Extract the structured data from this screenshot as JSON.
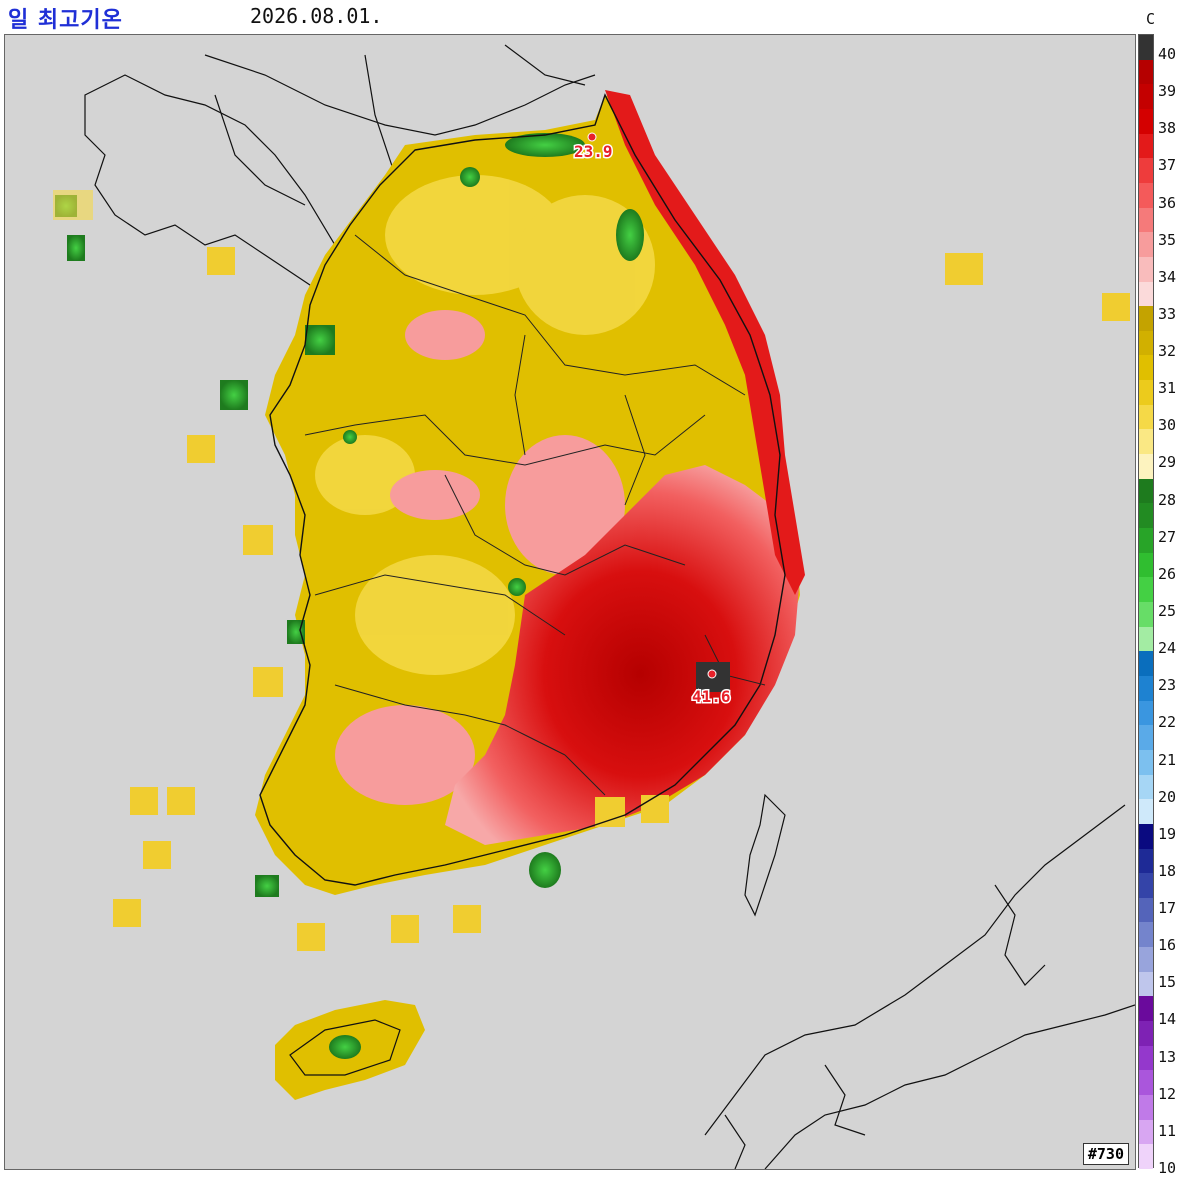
{
  "header": {
    "title": "일 최고기온",
    "date": "2026.08.01."
  },
  "legend": {
    "unit": "C",
    "labels": [
      "40",
      "39",
      "38",
      "37",
      "36",
      "35",
      "34",
      "33",
      "32",
      "31",
      "30",
      "29",
      "28",
      "27",
      "26",
      "25",
      "24",
      "23",
      "22",
      "21",
      "20",
      "19",
      "18",
      "17",
      "16",
      "15",
      "14",
      "13",
      "12",
      "11",
      "10"
    ],
    "colors": [
      "#333333",
      "#b50000",
      "#c40000",
      "#d40000",
      "#e31a1a",
      "#ee3c3c",
      "#f45a5a",
      "#f57a7a",
      "#f79c9c",
      "#f9bcbc",
      "#fbdada",
      "#c4a300",
      "#d1b000",
      "#e0bf00",
      "#eccb1c",
      "#f5d947",
      "#fae884",
      "#fdf3bf",
      "#1e7b1e",
      "#228b22",
      "#28a428",
      "#30be30",
      "#44d044",
      "#67dd67",
      "#a3eca3",
      "#0a6ebd",
      "#1e82d1",
      "#3a96e0",
      "#5aaae8",
      "#7cc0ef",
      "#a6d6f5",
      "#cfe9fa",
      "#0a0a80",
      "#1e2a96",
      "#3444a8",
      "#5464ba",
      "#7484cc",
      "#98a4dc",
      "#bfc6ec",
      "#6a0a9c",
      "#7e22b4",
      "#9438cc",
      "#aa56dc",
      "#c07ae8",
      "#d8a6f2",
      "#efd3fa"
    ]
  },
  "stations": [
    {
      "name": "max",
      "value": "41.6"
    },
    {
      "name": "min",
      "value": "23.9"
    }
  ],
  "map_id": "#730"
}
